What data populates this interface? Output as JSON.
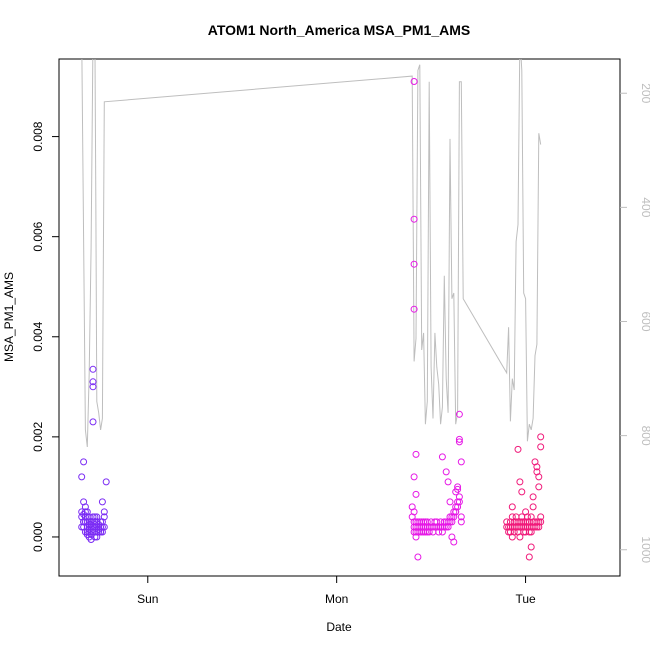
{
  "chart_data": {
    "type": "scatter",
    "title": "ATOM1 North_America MSA_PM1_AMS",
    "xlabel": "Date",
    "ylabel": "MSA_PM1_AMS",
    "x_ticks": [
      {
        "label": "Sun",
        "value": 0.8
      },
      {
        "label": "Mon",
        "value": 1.8
      },
      {
        "label": "Tue",
        "value": 2.8
      }
    ],
    "xlim": [
      0.33,
      3.3
    ],
    "ylim": [
      -0.00078,
      0.00955
    ],
    "y_ticks": [
      0.0,
      0.002,
      0.004,
      0.006,
      0.008
    ],
    "y_tick_labels": [
      "0.000",
      "0.002",
      "0.004",
      "0.006",
      "0.008"
    ],
    "right_axis": {
      "color": "#bebebe",
      "ylim": [
        1046,
        140
      ],
      "ticks": [
        200,
        400,
        600,
        800,
        1000
      ],
      "tick_labels": [
        "200",
        "400",
        "600",
        "800",
        "1000"
      ]
    },
    "line_series": {
      "color": "#bebebe",
      "x": [
        0.45,
        0.47,
        0.48,
        0.49,
        0.5,
        0.51,
        0.52,
        0.525,
        0.53,
        0.54,
        0.55,
        0.56,
        0.57,
        2.2,
        2.21,
        2.22,
        2.23,
        2.24,
        2.25,
        2.26,
        2.27,
        2.28,
        2.29,
        2.3,
        2.31,
        2.32,
        2.33,
        2.34,
        2.35,
        2.36,
        2.37,
        2.38,
        2.39,
        2.4,
        2.41,
        2.42,
        2.43,
        2.44,
        2.45,
        2.46,
        2.47,
        2.7,
        2.71,
        2.72,
        2.73,
        2.74,
        2.75,
        2.76,
        2.77,
        2.78,
        2.79,
        2.8,
        2.81,
        2.82,
        2.83,
        2.84,
        2.85,
        2.86,
        2.87,
        2.88
      ],
      "y": [
        100,
        790,
        820,
        690,
        470,
        100,
        100,
        380,
        740,
        760,
        790,
        770,
        215,
        170,
        670,
        630,
        160,
        150,
        650,
        620,
        780,
        740,
        180,
        680,
        770,
        620,
        680,
        710,
        780,
        750,
        520,
        700,
        760,
        280,
        560,
        550,
        780,
        760,
        180,
        180,
        560,
        690,
        610,
        775,
        700,
        720,
        460,
        430,
        100,
        160,
        550,
        560,
        810,
        780,
        790,
        770,
        660,
        640,
        270,
        290
      ],
      "note_unused": ""
    },
    "scatter_groups": [
      {
        "color": "#7b2cf4",
        "x": [
          0.45,
          0.45,
          0.46,
          0.46,
          0.46,
          0.47,
          0.47,
          0.47,
          0.47,
          0.48,
          0.48,
          0.48,
          0.48,
          0.48,
          0.49,
          0.49,
          0.49,
          0.49,
          0.49,
          0.49,
          0.5,
          0.5,
          0.5,
          0.5,
          0.5,
          0.5,
          0.51,
          0.51,
          0.51,
          0.51,
          0.51,
          0.52,
          0.52,
          0.52,
          0.52,
          0.52,
          0.53,
          0.53,
          0.53,
          0.53,
          0.54,
          0.54,
          0.54,
          0.54,
          0.55,
          0.55,
          0.55,
          0.56,
          0.56,
          0.56,
          0.57,
          0.57,
          0.58,
          0.45,
          0.46,
          0.47,
          0.48,
          0.49,
          0.5,
          0.5,
          0.51,
          0.52,
          0.46,
          0.47,
          0.53,
          0.54,
          0.55,
          0.53,
          0.56,
          0.48,
          0.45,
          0.46,
          0.52,
          0.51,
          0.51,
          0.51,
          0.51,
          0.57
        ],
        "y": [
          0.0005,
          0.0004,
          0.00045,
          0.0003,
          0.0002,
          0.0005,
          0.0004,
          0.0003,
          0.0001,
          0.0003,
          0.0002,
          0.0001,
          5e-05,
          0.0004,
          0.00025,
          0.0002,
          0.0001,
          0.00015,
          0.0003,
          0.0,
          0.0002,
          0.0001,
          5e-05,
          0.00025,
          0.0003,
          -5e-05,
          0.0003,
          0.0002,
          0.0001,
          0.0004,
          0.00015,
          0.0002,
          0.0003,
          0.0001,
          0.00025,
          0.0,
          0.0002,
          0.0003,
          0.0001,
          0.0004,
          0.0002,
          0.0001,
          0.00025,
          0.00015,
          0.0003,
          0.0002,
          0.0001,
          0.0003,
          0.0002,
          0.0001,
          0.0004,
          0.0002,
          0.0011,
          0.0012,
          0.0007,
          0.0006,
          0.0005,
          0.0004,
          0.0003,
          0.0002,
          0.0001,
          0.0002,
          0.0015,
          0.0004,
          0.0003,
          0.0002,
          0.0001,
          0.0,
          0.0007,
          0.0001,
          0.0002,
          0.0003,
          0.0004,
          0.0023,
          0.003,
          0.0031,
          0.00335,
          0.0005
        ],
        "note_unused": ""
      },
      {
        "color": "#e619e6",
        "x": [
          2.2,
          2.2,
          2.21,
          2.21,
          2.21,
          2.21,
          2.22,
          2.22,
          2.22,
          2.22,
          2.23,
          2.23,
          2.23,
          2.24,
          2.24,
          2.24,
          2.25,
          2.25,
          2.25,
          2.26,
          2.26,
          2.26,
          2.27,
          2.27,
          2.27,
          2.28,
          2.28,
          2.28,
          2.29,
          2.29,
          2.3,
          2.3,
          2.31,
          2.31,
          2.32,
          2.32,
          2.33,
          2.33,
          2.34,
          2.34,
          2.35,
          2.35,
          2.36,
          2.36,
          2.37,
          2.37,
          2.38,
          2.38,
          2.39,
          2.39,
          2.4,
          2.4,
          2.41,
          2.41,
          2.42,
          2.42,
          2.43,
          2.43,
          2.44,
          2.44,
          2.45,
          2.45,
          2.46,
          2.46,
          2.21,
          2.21,
          2.21,
          2.21,
          2.21,
          2.22,
          2.22,
          2.23,
          2.36,
          2.38,
          2.4,
          2.44,
          2.44,
          2.45,
          2.45,
          2.45,
          2.46,
          2.43,
          2.43,
          2.42,
          2.41,
          2.39
        ],
        "y": [
          0.0006,
          0.0004,
          0.0003,
          0.0002,
          0.0001,
          0.0005,
          0.0003,
          0.0002,
          0.0001,
          0.0,
          0.0003,
          0.0002,
          0.0001,
          0.0003,
          0.0002,
          0.0001,
          0.0002,
          0.0001,
          0.0003,
          0.0003,
          0.0002,
          0.0001,
          0.0002,
          0.0001,
          0.0003,
          0.0003,
          0.0002,
          0.0001,
          0.0002,
          0.0001,
          0.0003,
          0.0002,
          0.0002,
          0.0001,
          0.0003,
          0.0002,
          0.0003,
          0.0002,
          0.0002,
          0.0001,
          0.0003,
          0.0002,
          0.0002,
          0.0001,
          0.0003,
          0.0002,
          0.0003,
          0.0002,
          0.0003,
          0.0002,
          0.0004,
          0.0003,
          0.0004,
          0.0003,
          0.0005,
          0.0004,
          0.0006,
          0.0005,
          0.0007,
          0.0006,
          0.0008,
          0.0007,
          0.0004,
          0.0003,
          0.0091,
          0.00635,
          0.00545,
          0.00455,
          0.0012,
          0.00165,
          0.00085,
          -0.0004,
          0.0016,
          0.0013,
          0.0007,
          0.001,
          0.00095,
          0.00195,
          0.0019,
          0.00245,
          0.0015,
          0.0009,
          0.0005,
          -0.0001,
          0.0,
          0.0011
        ],
        "note_unused": ""
      },
      {
        "color": "#f01a7a",
        "x": [
          2.7,
          2.7,
          2.71,
          2.71,
          2.72,
          2.72,
          2.72,
          2.73,
          2.73,
          2.73,
          2.74,
          2.74,
          2.74,
          2.75,
          2.75,
          2.75,
          2.76,
          2.76,
          2.76,
          2.77,
          2.77,
          2.77,
          2.78,
          2.78,
          2.78,
          2.79,
          2.79,
          2.79,
          2.8,
          2.8,
          2.8,
          2.81,
          2.81,
          2.81,
          2.82,
          2.82,
          2.82,
          2.83,
          2.83,
          2.83,
          2.84,
          2.84,
          2.85,
          2.85,
          2.86,
          2.86,
          2.87,
          2.87,
          2.88,
          2.88,
          2.73,
          2.76,
          2.77,
          2.78,
          2.8,
          2.82,
          2.85,
          2.86,
          2.86,
          2.87,
          2.87,
          2.88,
          2.88,
          2.84,
          2.84,
          2.83
        ],
        "y": [
          0.0003,
          0.0002,
          0.0002,
          0.0001,
          0.0003,
          0.0002,
          0.0001,
          0.0004,
          0.0002,
          0.0,
          0.0003,
          0.0002,
          0.0001,
          0.0004,
          0.0003,
          0.0002,
          0.0003,
          0.0002,
          0.0001,
          0.0003,
          0.0002,
          0.0,
          0.0004,
          0.0003,
          0.0002,
          0.0003,
          0.0002,
          0.0001,
          0.0003,
          0.0002,
          0.0001,
          0.0004,
          0.0003,
          0.0002,
          0.0003,
          0.0002,
          0.0001,
          0.0004,
          0.0002,
          0.0001,
          0.0003,
          0.0002,
          0.0003,
          0.0002,
          0.0003,
          0.0002,
          0.0003,
          0.0002,
          0.0004,
          0.0003,
          0.0006,
          0.00175,
          0.0011,
          0.0009,
          0.0005,
          -0.0004,
          0.0015,
          0.0013,
          0.0014,
          0.0012,
          0.001,
          0.002,
          0.0018,
          0.0008,
          0.0006,
          -0.0002
        ],
        "note_unused": ""
      }
    ],
    "grid": false,
    "legend": "none"
  }
}
